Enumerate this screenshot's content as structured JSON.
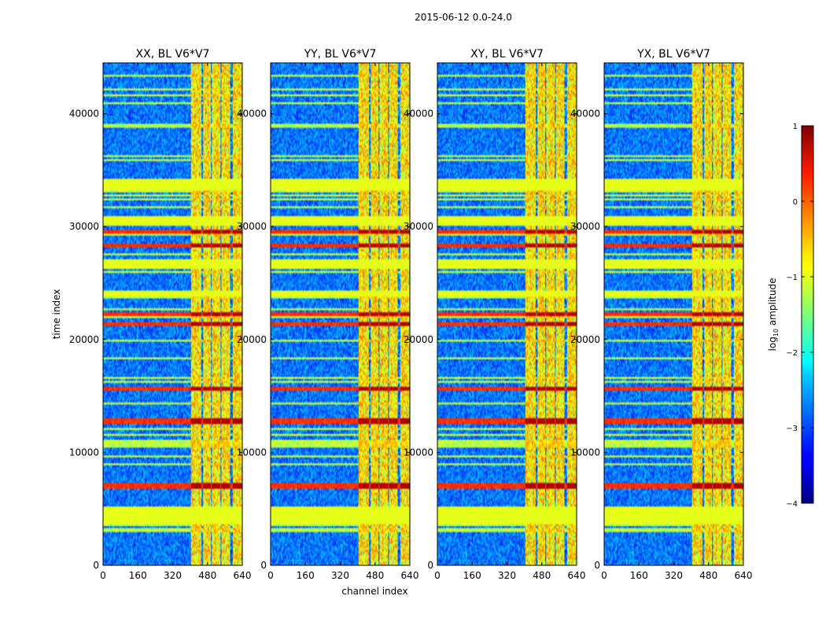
{
  "figure": {
    "suptitle": "2015-06-12 0.0-24.0"
  },
  "chart_data": {
    "type": "heatmap",
    "panels": [
      {
        "title": "XX, BL V6*V7",
        "show_ylabel": true,
        "show_xlabel": false
      },
      {
        "title": "YY, BL V6*V7",
        "show_ylabel": false,
        "show_xlabel": true
      },
      {
        "title": "XY, BL V6*V7",
        "show_ylabel": false,
        "show_xlabel": false
      },
      {
        "title": "YX, BL V6*V7",
        "show_ylabel": false,
        "show_xlabel": false
      }
    ],
    "xlabel": "channel index",
    "ylabel": "time index",
    "xlim": [
      0,
      640
    ],
    "ylim": [
      0,
      44500
    ],
    "xticks": [
      0,
      160,
      320,
      480,
      640
    ],
    "yticks": [
      0,
      10000,
      20000,
      30000,
      40000
    ],
    "colorbar": {
      "label": "log10 amplitude",
      "label_base": "log",
      "label_sub": "10",
      "label_rest": " amplitude",
      "range": [
        -4,
        1
      ],
      "ticks": [
        "1",
        "0",
        "−1",
        "−2",
        "−3",
        "−4"
      ],
      "colormap": "jet"
    },
    "structure": {
      "background_level": -2.8,
      "flagged_level": -1.0,
      "flagged_time_ranges": [
        [
          3700,
          5200
        ],
        [
          26300,
          27100
        ],
        [
          30100,
          30900
        ],
        [
          33200,
          34200
        ],
        [
          23800,
          24300
        ]
      ],
      "bright_channel_columns": [
        [
          405,
          450
        ],
        [
          460,
          495
        ],
        [
          500,
          540
        ],
        [
          545,
          585
        ],
        [
          598,
          640
        ]
      ],
      "bright_column_level": -0.8,
      "strong_rfi_time_rows": [
        12700,
        12800,
        28300,
        29500,
        21400,
        22200,
        15600,
        6900,
        7100
      ],
      "rfi_row_level": 0.4
    }
  }
}
